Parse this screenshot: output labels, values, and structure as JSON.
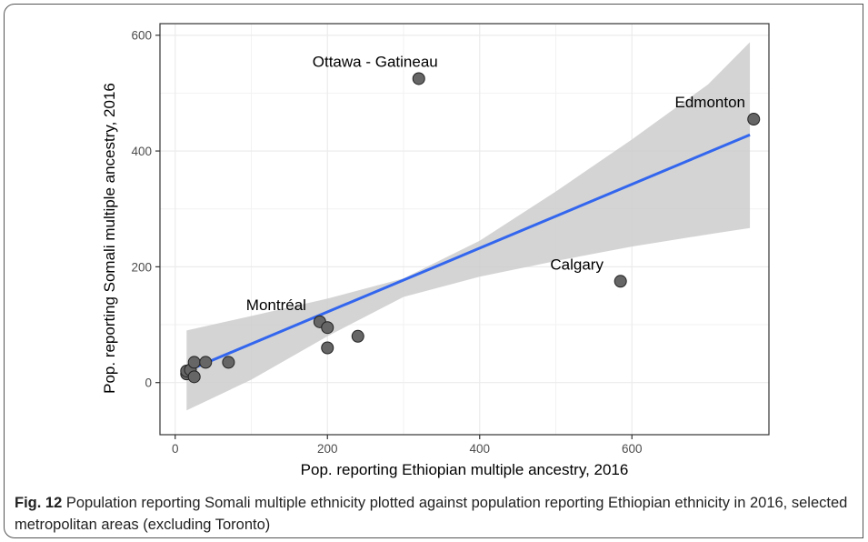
{
  "chart_data": {
    "type": "scatter",
    "xlabel": "Pop. reporting Ethiopian multiple ancestry, 2016",
    "ylabel": "Pop. reporting Somali multiple ancestry, 2016",
    "xlim": [
      -20,
      780
    ],
    "ylim": [
      -90,
      620
    ],
    "xticks": [
      0,
      200,
      400,
      600
    ],
    "yticks": [
      0,
      200,
      400,
      600
    ],
    "grid": true,
    "points": [
      {
        "x": 15,
        "y": 15,
        "label": ""
      },
      {
        "x": 15,
        "y": 20,
        "label": ""
      },
      {
        "x": 20,
        "y": 22,
        "label": ""
      },
      {
        "x": 25,
        "y": 10,
        "label": ""
      },
      {
        "x": 25,
        "y": 35,
        "label": ""
      },
      {
        "x": 40,
        "y": 35,
        "label": ""
      },
      {
        "x": 70,
        "y": 35,
        "label": ""
      },
      {
        "x": 190,
        "y": 105,
        "label": "Montréal"
      },
      {
        "x": 200,
        "y": 95,
        "label": ""
      },
      {
        "x": 200,
        "y": 60,
        "label": ""
      },
      {
        "x": 240,
        "y": 80,
        "label": ""
      },
      {
        "x": 320,
        "y": 525,
        "label": "Ottawa - Gatineau"
      },
      {
        "x": 585,
        "y": 175,
        "label": "Calgary"
      },
      {
        "x": 760,
        "y": 455,
        "label": "Edmonton"
      }
    ],
    "fit_line": {
      "x": [
        15,
        755
      ],
      "y": [
        20,
        428
      ]
    },
    "confidence_band": {
      "x": [
        15,
        100,
        200,
        300,
        400,
        500,
        600,
        700,
        755
      ],
      "upper": [
        90,
        115,
        145,
        180,
        245,
        330,
        420,
        515,
        588
      ],
      "lower": [
        -48,
        5,
        80,
        148,
        183,
        210,
        235,
        256,
        267
      ]
    },
    "colors": {
      "point_fill": "#666666",
      "point_stroke": "#222222",
      "line": "#3366ee",
      "band": "#cccccc",
      "panel_bg": "#ffffff",
      "grid": "#ebebeb"
    }
  },
  "caption": {
    "label": "Fig. 12",
    "text": " Population reporting Somali multiple ethnicity plotted against population reporting Ethiopian ethnicity in 2016, selected metropolitan areas (excluding Toronto)"
  }
}
